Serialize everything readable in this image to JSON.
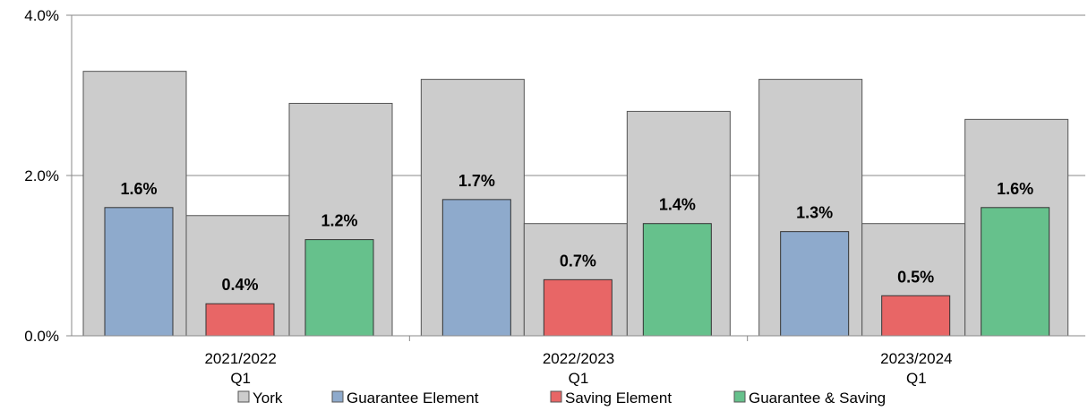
{
  "chart_data": {
    "type": "bar",
    "categories": [
      {
        "line1": "2021/2022",
        "line2": "Q1"
      },
      {
        "line1": "2022/2023",
        "line2": "Q1"
      },
      {
        "line1": "2023/2024",
        "line2": "Q1"
      }
    ],
    "background_series": {
      "name": "York",
      "color": "#cccccc",
      "values": [
        3.3,
        1.5,
        2.9,
        3.2,
        1.4,
        2.8,
        3.2,
        1.4,
        2.7
      ]
    },
    "series": [
      {
        "name": "Guarantee Element",
        "color": "#8eaacc",
        "values": [
          1.6,
          1.7,
          1.3
        ],
        "labels": [
          "1.6%",
          "1.7%",
          "1.3%"
        ]
      },
      {
        "name": "Saving Element",
        "color": "#e86666",
        "values": [
          0.4,
          0.7,
          0.5
        ],
        "labels": [
          "0.4%",
          "0.7%",
          "0.5%"
        ]
      },
      {
        "name": "Guarantee & Saving",
        "color": "#66c18c",
        "values": [
          1.2,
          1.4,
          1.6
        ],
        "labels": [
          "1.2%",
          "1.4%",
          "1.6%"
        ]
      }
    ],
    "ylim": [
      0,
      4
    ],
    "yticks": [
      0,
      2,
      4
    ],
    "ytick_labels": [
      "0.0%",
      "2.0%",
      "4.0%"
    ],
    "grid": true,
    "legend_position": "bottom",
    "legend": [
      "York",
      "Guarantee Element",
      "Saving Element",
      "Guarantee & Saving"
    ]
  }
}
